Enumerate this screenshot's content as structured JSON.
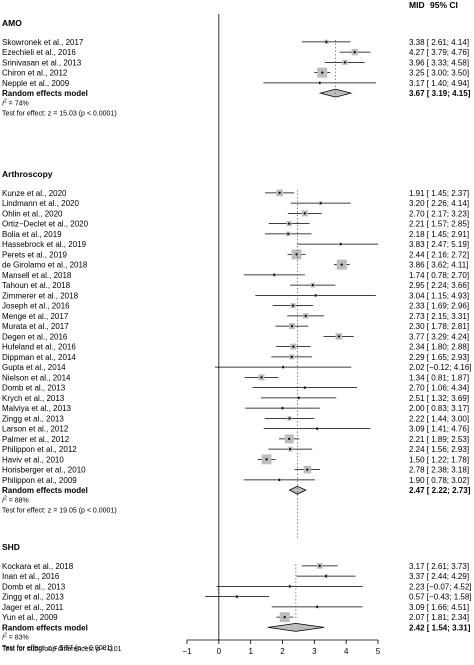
{
  "chart_data": {
    "type": "forest",
    "title": "",
    "header": {
      "mid": "MID",
      "ci": "95% CI"
    },
    "xlim": [
      -1,
      5
    ],
    "xticks": [
      -1,
      0,
      1,
      2,
      3,
      4,
      5
    ],
    "xtick_labels": [
      "−1",
      "0",
      "1",
      "2",
      "3",
      "4",
      "5"
    ],
    "groups": [
      {
        "name": "AMO",
        "studies": [
          {
            "label": "Skowronek et al., 2017",
            "mid": 3.38,
            "lo": 2.61,
            "hi": 4.14,
            "ci_text": "3.38  [ 2.61; 4.14]"
          },
          {
            "label": "Ezechieli et al., 2016",
            "mid": 4.27,
            "lo": 3.79,
            "hi": 4.76,
            "ci_text": "4.27  [ 3.79; 4.76]"
          },
          {
            "label": "Srinivasan et al., 2013",
            "mid": 3.96,
            "lo": 3.33,
            "hi": 4.58,
            "ci_text": "3.96  [ 3.33; 4.58]"
          },
          {
            "label": "Chiron et al., 2012",
            "mid": 3.25,
            "lo": 3.0,
            "hi": 3.5,
            "ci_text": "3.25  [ 3.00; 3.50]"
          },
          {
            "label": "Nepple et al., 2009",
            "mid": 3.17,
            "lo": 1.4,
            "hi": 4.94,
            "ci_text": "3.17  [ 1.40; 4.94]"
          }
        ],
        "pooled": {
          "label": "Random effects model",
          "mid": 3.67,
          "lo": 3.19,
          "hi": 4.15,
          "ci_text": "3.67  [ 3.19; 4.15]"
        },
        "i2": "= 74%",
        "test": "Test for effect: z = 15.03 (p < 0.0001)"
      },
      {
        "name": "Arthroscopy",
        "studies": [
          {
            "label": "Kunze et al., 2020",
            "mid": 1.91,
            "lo": 1.45,
            "hi": 2.37,
            "ci_text": "1.91  [ 1.45; 2.37]"
          },
          {
            "label": "Lindmann et al., 2020",
            "mid": 3.2,
            "lo": 2.26,
            "hi": 4.14,
            "ci_text": "3.20  [ 2.26; 4.14]"
          },
          {
            "label": "Ohlin et al., 2020",
            "mid": 2.7,
            "lo": 2.17,
            "hi": 3.23,
            "ci_text": "2.70  [ 2.17; 3.23]"
          },
          {
            "label": "Ortiz−Declet et al., 2020",
            "mid": 2.21,
            "lo": 1.57,
            "hi": 2.85,
            "ci_text": "2.21  [ 1.57; 2.85]"
          },
          {
            "label": "Bolia et al., 2019",
            "mid": 2.18,
            "lo": 1.45,
            "hi": 2.91,
            "ci_text": "2.18  [ 1.45; 2.91]"
          },
          {
            "label": "Hassebrock et al., 2019",
            "mid": 3.83,
            "lo": 2.47,
            "hi": 5.19,
            "ci_text": "3.83  [ 2.47; 5.19]"
          },
          {
            "label": "Perets et al., 2019",
            "mid": 2.44,
            "lo": 2.16,
            "hi": 2.72,
            "ci_text": "2.44  [ 2.16; 2.72]"
          },
          {
            "label": "de Girolamo et al., 2018",
            "mid": 3.86,
            "lo": 3.62,
            "hi": 4.11,
            "ci_text": "3.86  [ 3.62; 4.11]"
          },
          {
            "label": "Mansell et al., 2018",
            "mid": 1.74,
            "lo": 0.78,
            "hi": 2.7,
            "ci_text": "1.74  [ 0.78; 2.70]"
          },
          {
            "label": "Tahoun et al., 2018",
            "mid": 2.95,
            "lo": 2.24,
            "hi": 3.66,
            "ci_text": "2.95  [ 2.24; 3.66]"
          },
          {
            "label": "Zimmerer et al., 2018",
            "mid": 3.04,
            "lo": 1.15,
            "hi": 4.93,
            "ci_text": "3.04  [ 1.15; 4.93]"
          },
          {
            "label": "Joseph et al., 2016",
            "mid": 2.33,
            "lo": 1.69,
            "hi": 2.96,
            "ci_text": "2.33  [ 1.69; 2.96]"
          },
          {
            "label": "Menge et al., 2017",
            "mid": 2.73,
            "lo": 2.15,
            "hi": 3.31,
            "ci_text": "2.73  [ 2.15; 3.31]"
          },
          {
            "label": "Murata et al., 2017",
            "mid": 2.3,
            "lo": 1.78,
            "hi": 2.81,
            "ci_text": "2.30  [ 1.78; 2.81]"
          },
          {
            "label": "Degen et al., 2016",
            "mid": 3.77,
            "lo": 3.29,
            "hi": 4.24,
            "ci_text": "3.77  [ 3.29; 4.24]"
          },
          {
            "label": "Hufeland et al., 2016",
            "mid": 2.34,
            "lo": 1.8,
            "hi": 2.88,
            "ci_text": "2.34  [ 1.80; 2.88]"
          },
          {
            "label": "Dippman et al., 2014",
            "mid": 2.29,
            "lo": 1.65,
            "hi": 2.93,
            "ci_text": "2.29  [ 1.65; 2.93]"
          },
          {
            "label": "Gupta et al., 2014",
            "mid": 2.02,
            "lo": -0.12,
            "hi": 4.16,
            "ci_text": "2.02  [−0.12; 4.16]"
          },
          {
            "label": "Nielson et al., 2014",
            "mid": 1.34,
            "lo": 0.81,
            "hi": 1.87,
            "ci_text": "1.34  [ 0.81; 1.87]"
          },
          {
            "label": "Domb et al., 2013",
            "mid": 2.7,
            "lo": 1.06,
            "hi": 4.34,
            "ci_text": "2.70  [ 1.06; 4.34]"
          },
          {
            "label": "Krych et al., 2013",
            "mid": 2.51,
            "lo": 1.32,
            "hi": 3.69,
            "ci_text": "2.51  [ 1.32; 3.69]"
          },
          {
            "label": "Malviya et al., 2013",
            "mid": 2.0,
            "lo": 0.83,
            "hi": 3.17,
            "ci_text": "2.00  [ 0.83; 3.17]"
          },
          {
            "label": "Zingg et al., 2013",
            "mid": 2.22,
            "lo": 1.44,
            "hi": 3.0,
            "ci_text": "2.22  [ 1.44; 3.00]"
          },
          {
            "label": "Larson et al., 2012",
            "mid": 3.09,
            "lo": 1.41,
            "hi": 4.76,
            "ci_text": "3.09  [ 1.41; 4.76]"
          },
          {
            "label": "Palmer et al., 2012",
            "mid": 2.21,
            "lo": 1.89,
            "hi": 2.53,
            "ci_text": "2.21  [ 1.89; 2.53]"
          },
          {
            "label": "Philippon et al., 2012",
            "mid": 2.24,
            "lo": 1.56,
            "hi": 2.93,
            "ci_text": "2.24  [ 1.56; 2.93]"
          },
          {
            "label": "Haviv et al., 2010",
            "mid": 1.5,
            "lo": 1.22,
            "hi": 1.78,
            "ci_text": "1.50  [ 1.22; 1.78]"
          },
          {
            "label": "Horisberger et al., 2010",
            "mid": 2.78,
            "lo": 2.38,
            "hi": 3.18,
            "ci_text": "2.78  [ 2.38; 3.18]"
          },
          {
            "label": "Philippon et al., 2009",
            "mid": 1.9,
            "lo": 0.78,
            "hi": 3.02,
            "ci_text": "1.90  [ 0.78; 3.02]"
          }
        ],
        "pooled": {
          "label": "Random effects model",
          "mid": 2.47,
          "lo": 2.22,
          "hi": 2.73,
          "ci_text": "2.47  [ 2.22; 2.73]"
        },
        "i2": "= 88%",
        "test": "Test for effect: z = 19.05 (p < 0.0001)"
      },
      {
        "name": "SHD",
        "studies": [
          {
            "label": "Kockara et al., 2018",
            "mid": 3.17,
            "lo": 2.61,
            "hi": 3.73,
            "ci_text": "3.17  [ 2.61; 3.73]"
          },
          {
            "label": "Inan et al., 2016",
            "mid": 3.37,
            "lo": 2.44,
            "hi": 4.29,
            "ci_text": "3.37  [ 2.44; 4.29]"
          },
          {
            "label": "Domb et al., 2013",
            "mid": 2.23,
            "lo": -0.07,
            "hi": 4.52,
            "ci_text": "2.23  [−0.07; 4.52]"
          },
          {
            "label": "Zingg et al., 2013",
            "mid": 0.57,
            "lo": -0.43,
            "hi": 1.58,
            "ci_text": "0.57  [−0.43; 1.58]"
          },
          {
            "label": "Jager et al., 2011",
            "mid": 3.09,
            "lo": 1.66,
            "hi": 4.51,
            "ci_text": "3.09  [ 1.66; 4.51]"
          },
          {
            "label": "Yun et al., 2009",
            "mid": 2.07,
            "lo": 1.81,
            "hi": 2.34,
            "ci_text": "2.07  [ 1.81; 2.34]"
          }
        ],
        "pooled": {
          "label": "Random effects model",
          "mid": 2.42,
          "lo": 1.54,
          "hi": 3.31,
          "ci_text": "2.42  [ 1.54; 3.31]"
        },
        "i2": "= 83%",
        "test": "Test for effect: z = 5.37 (p < 0.0001)"
      }
    ],
    "subgroup_test": "Test for subgroup differences: p < 0.01"
  }
}
